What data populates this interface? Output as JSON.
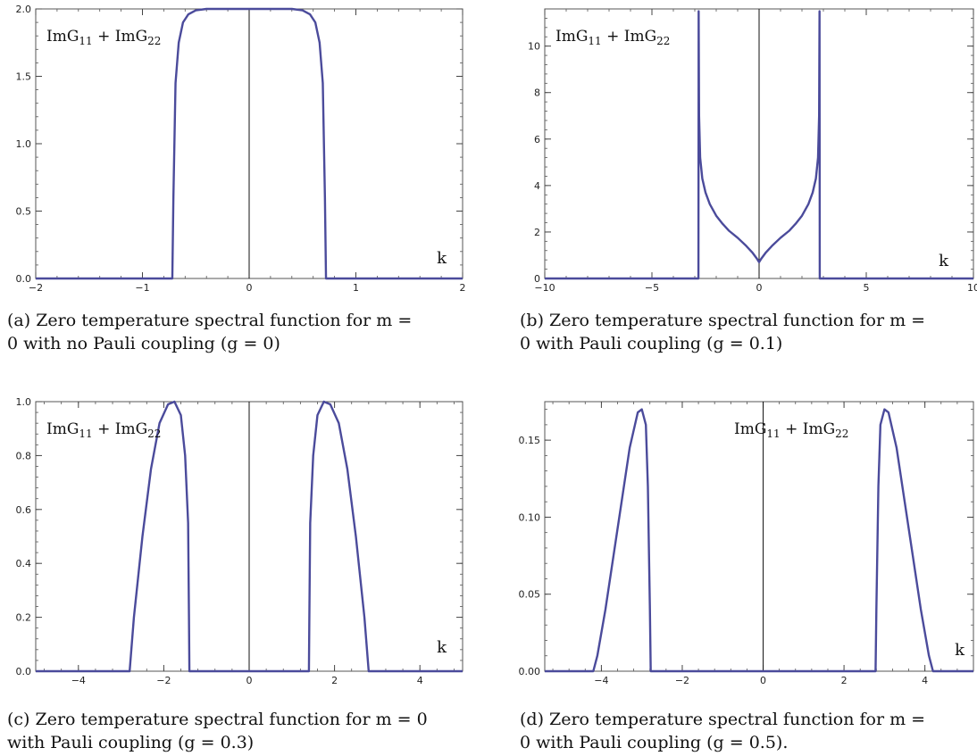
{
  "panels": [
    {
      "id": "a",
      "caption": "(a) Zero temperature spectral function for m =\n0 with no Pauli coupling (g = 0)"
    },
    {
      "id": "b",
      "caption": "(b) Zero temperature spectral function for m =\n0 with Pauli coupling (g = 0.1)"
    },
    {
      "id": "c",
      "caption": "(c) Zero temperature spectral function for m = 0\nwith Pauli coupling (g = 0.3)"
    },
    {
      "id": "d",
      "caption": "(d) Zero temperature spectral function for m =\n0 with Pauli coupling (g = 0.5)."
    }
  ],
  "chart_data": [
    {
      "type": "line",
      "title": "",
      "legend_text": "ImG11 + ImG22",
      "xlabel": "k",
      "ylabel": "",
      "xlim": [
        -2,
        2
      ],
      "ylim": [
        0,
        2.0
      ],
      "xticks": [
        -2,
        -1,
        0,
        1,
        2
      ],
      "xtick_labels": [
        "-2",
        "-1",
        "0",
        "1",
        "2"
      ],
      "yticks": [
        0,
        0.5,
        1.0,
        1.5,
        2.0
      ],
      "ytick_labels": [
        "0.0",
        "0.5",
        "1.0",
        "1.5",
        "2.0"
      ],
      "line_color": "#4b4b9b",
      "series": [
        {
          "x": [
            -2,
            -0.72,
            -0.71,
            -0.69,
            -0.66,
            -0.62,
            -0.57,
            -0.5,
            -0.4,
            -0.3,
            -0.2,
            -0.1,
            0,
            0.1,
            0.2,
            0.3,
            0.4,
            0.5,
            0.57,
            0.62,
            0.66,
            0.69,
            0.71,
            0.72,
            2
          ],
          "y": [
            0,
            0,
            0.6,
            1.45,
            1.75,
            1.9,
            1.96,
            1.99,
            2.0,
            2.0,
            2.0,
            2.0,
            2.0,
            2.0,
            2.0,
            2.0,
            2.0,
            1.99,
            1.96,
            1.9,
            1.75,
            1.45,
            0.6,
            0,
            0
          ]
        }
      ]
    },
    {
      "type": "line",
      "title": "",
      "legend_text": "ImG11 + ImG22",
      "xlabel": "k",
      "ylabel": "",
      "xlim": [
        -10,
        10
      ],
      "ylim": [
        0,
        11.6
      ],
      "xticks": [
        -10,
        -5,
        0,
        5,
        10
      ],
      "xtick_labels": [
        "-10",
        "-5",
        "0",
        "5",
        "10"
      ],
      "yticks": [
        0,
        2,
        4,
        6,
        8,
        10
      ],
      "ytick_labels": [
        "0",
        "2",
        "4",
        "6",
        "8",
        "10"
      ],
      "line_color": "#4b4b9b",
      "series": [
        {
          "x": [
            -10,
            -2.83,
            -2.82,
            -2.8,
            -2.75,
            -2.65,
            -2.5,
            -2.3,
            -2.0,
            -1.7,
            -1.4,
            -1.0,
            -0.6,
            -0.3,
            -0.1,
            0,
            0.1,
            0.3,
            0.6,
            1.0,
            1.4,
            1.7,
            2.0,
            2.3,
            2.5,
            2.65,
            2.75,
            2.8,
            2.82,
            2.83,
            10
          ],
          "y": [
            0,
            0,
            11.5,
            7.0,
            5.2,
            4.3,
            3.7,
            3.2,
            2.7,
            2.35,
            2.05,
            1.75,
            1.4,
            1.1,
            0.85,
            0.7,
            0.85,
            1.1,
            1.4,
            1.75,
            2.05,
            2.35,
            2.7,
            3.2,
            3.7,
            4.3,
            5.2,
            7.0,
            11.5,
            0,
            0
          ]
        }
      ]
    },
    {
      "type": "line",
      "title": "",
      "legend_text": "ImG11 + ImG22",
      "xlabel": "k",
      "ylabel": "",
      "xlim": [
        -5,
        5
      ],
      "ylim": [
        0,
        1.0
      ],
      "xticks": [
        -4,
        -2,
        0,
        2,
        4
      ],
      "xtick_labels": [
        "-4",
        "-2",
        "0",
        "2",
        "4"
      ],
      "yticks": [
        0,
        0.2,
        0.4,
        0.6,
        0.8,
        1.0
      ],
      "ytick_labels": [
        "0.0",
        "0.2",
        "0.4",
        "0.6",
        "0.8",
        "1.0"
      ],
      "line_color": "#4b4b9b",
      "series": [
        {
          "x": [
            -5,
            -2.8,
            -2.7,
            -2.5,
            -2.3,
            -2.1,
            -1.9,
            -1.75,
            -1.6,
            -1.5,
            -1.43,
            -1.41,
            -1.4,
            1.4,
            1.41,
            1.43,
            1.5,
            1.6,
            1.75,
            1.9,
            2.1,
            2.3,
            2.5,
            2.7,
            2.8,
            5
          ],
          "y": [
            0,
            0,
            0.2,
            0.5,
            0.75,
            0.92,
            0.99,
            1.0,
            0.95,
            0.8,
            0.55,
            0.2,
            0,
            0,
            0.2,
            0.55,
            0.8,
            0.95,
            1.0,
            0.99,
            0.92,
            0.75,
            0.5,
            0.2,
            0,
            0
          ]
        }
      ]
    },
    {
      "type": "line",
      "title": "",
      "legend_text": "ImG11 + ImG22",
      "xlabel": "k",
      "ylabel": "",
      "xlim": [
        -5.4,
        5.2
      ],
      "ylim": [
        0,
        0.175
      ],
      "xticks": [
        -4,
        -2,
        0,
        2,
        4
      ],
      "xtick_labels": [
        "-4",
        "-2",
        "0",
        "2",
        "4"
      ],
      "yticks": [
        0,
        0.05,
        0.1,
        0.15
      ],
      "ytick_labels": [
        "0.00",
        "0.05",
        "0.10",
        "0.15"
      ],
      "line_color": "#4b4b9b",
      "series": [
        {
          "x": [
            -5.4,
            -4.2,
            -4.1,
            -3.9,
            -3.7,
            -3.5,
            -3.3,
            -3.1,
            -3.0,
            -2.9,
            -2.85,
            -2.8,
            -2.78,
            2.78,
            2.8,
            2.85,
            2.9,
            3.0,
            3.1,
            3.3,
            3.5,
            3.7,
            3.9,
            4.1,
            4.2,
            5.2
          ],
          "y": [
            0,
            0,
            0.01,
            0.04,
            0.075,
            0.11,
            0.145,
            0.168,
            0.17,
            0.16,
            0.12,
            0.04,
            0,
            0,
            0.04,
            0.12,
            0.16,
            0.17,
            0.168,
            0.145,
            0.11,
            0.075,
            0.04,
            0.01,
            0,
            0
          ]
        }
      ]
    }
  ]
}
